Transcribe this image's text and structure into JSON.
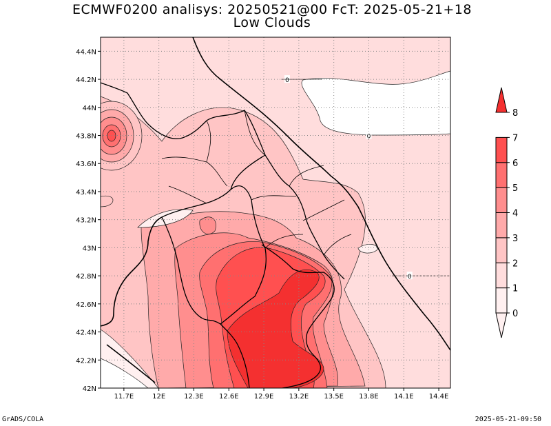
{
  "title_line1": "ECMWF0200 analisys: 20250521@00 FcT: 2025-05-21+18",
  "title_line2": "Low Clouds",
  "footer_left": "GrADS/COLA",
  "footer_right": "2025-05-21-09:50",
  "chart_data": {
    "type": "heatmap",
    "title": "Low Clouds",
    "x_range": [
      11.5,
      14.5
    ],
    "y_range": [
      42.0,
      44.5
    ],
    "x_ticks": [
      "11.7E",
      "12E",
      "12.3E",
      "12.6E",
      "12.9E",
      "13.2E",
      "13.5E",
      "13.8E",
      "14.1E",
      "14.4E"
    ],
    "x_tick_values": [
      11.7,
      12.0,
      12.3,
      12.6,
      12.9,
      13.2,
      13.5,
      13.8,
      14.1,
      14.4
    ],
    "y_ticks": [
      "42N",
      "42.2N",
      "42.4N",
      "42.6N",
      "42.8N",
      "43N",
      "43.2N",
      "43.4N",
      "43.6N",
      "43.8N",
      "44N",
      "44.2N",
      "44.4N"
    ],
    "y_tick_values": [
      42.0,
      42.2,
      42.4,
      42.6,
      42.8,
      43.0,
      43.2,
      43.4,
      43.6,
      43.8,
      44.0,
      44.2,
      44.4
    ],
    "grid": true,
    "colorbar": {
      "levels": [
        "0",
        "1",
        "2",
        "3",
        "4",
        "5",
        "6",
        "7",
        "8"
      ],
      "colors": [
        "#fff0f0",
        "#ffdddd",
        "#ffc5c5",
        "#ffaaaa",
        "#ff8e8e",
        "#ff7070",
        "#ff5050",
        "#f43030"
      ]
    },
    "contour_labels": [
      {
        "text": "0",
        "lon": 13.1,
        "lat": 44.2
      },
      {
        "text": "0",
        "lon": 13.8,
        "lat": 43.8
      },
      {
        "text": "0",
        "lon": 14.15,
        "lat": 42.8
      }
    ],
    "features": [
      {
        "name": "maximum-southeast",
        "lon": 13.0,
        "lat": 42.45,
        "value": 7.5
      },
      {
        "name": "maximum-south",
        "lon": 13.3,
        "lat": 42.1,
        "value": 7.0
      },
      {
        "name": "maximum-east",
        "lon": 13.3,
        "lat": 42.8,
        "value": 7.0
      },
      {
        "name": "maximum-northwest",
        "lon": 11.65,
        "lat": 43.8,
        "value": 6.0
      },
      {
        "name": "clear-area-northeast",
        "lon": 14.0,
        "lat": 44.0,
        "value": 0.0
      }
    ]
  }
}
